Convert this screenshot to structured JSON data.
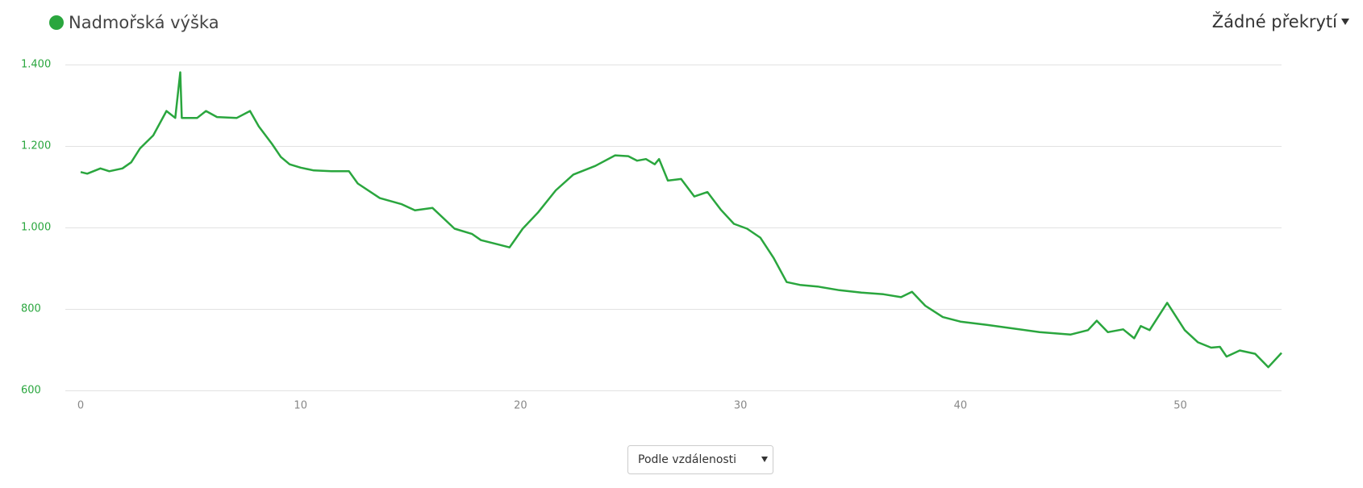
{
  "chart_data": {
    "type": "line",
    "series": [
      {
        "name": "Nadmořská výška",
        "color": "#2aa63e",
        "values": [
          1136,
          1132,
          1145,
          1138,
          1145,
          1160,
          1194,
          1226,
          1286,
          1269,
          1381,
          1269,
          1269,
          1286,
          1271,
          1269,
          1286,
          1248,
          1205,
          1173,
          1155,
          1147,
          1140,
          1138,
          1138,
          1108,
          1072,
          1057,
          1042,
          1048,
          997,
          984,
          969,
          958,
          951,
          997,
          1037,
          1091,
          1130,
          1151,
          1177,
          1175,
          1164,
          1168,
          1155,
          1168,
          1115,
          1119,
          1076,
          1087,
          1044,
          1009,
          997,
          975,
          926,
          866,
          859,
          855,
          846,
          840,
          836,
          829,
          842,
          808,
          780,
          769,
          761,
          752,
          743,
          737,
          748,
          771,
          743,
          750,
          728,
          758,
          748,
          815,
          748,
          718,
          705,
          707,
          683,
          698,
          690,
          657,
          692
        ]
      }
    ],
    "x": [
      0,
      0.3,
      0.9,
      1.3,
      1.9,
      2.3,
      2.7,
      3.3,
      3.9,
      4.3,
      4.53,
      4.6,
      5.3,
      5.7,
      6.2,
      7.1,
      7.7,
      8.1,
      8.7,
      9.1,
      9.5,
      10.0,
      10.6,
      11.4,
      12.2,
      12.6,
      13.6,
      14.6,
      15.2,
      16.0,
      17.0,
      17.8,
      18.2,
      19.0,
      19.5,
      20.1,
      20.8,
      21.6,
      22.4,
      23.4,
      24.3,
      24.9,
      25.3,
      25.7,
      26.1,
      26.3,
      26.7,
      27.3,
      27.9,
      28.5,
      29.1,
      29.7,
      30.3,
      30.9,
      31.5,
      32.1,
      32.7,
      33.5,
      34.5,
      35.5,
      36.5,
      37.3,
      37.8,
      38.4,
      39.2,
      40.0,
      41.2,
      42.4,
      43.6,
      45.0,
      45.8,
      46.2,
      46.7,
      47.4,
      47.9,
      48.2,
      48.6,
      49.4,
      50.2,
      50.8,
      51.4,
      51.8,
      52.1,
      52.7,
      53.4,
      54.0,
      54.6
    ],
    "xlim": [
      0,
      54.6
    ],
    "xticks": [
      0,
      10,
      20,
      30,
      40,
      50
    ],
    "ylim": [
      600,
      1400
    ],
    "yticks": [
      600,
      800,
      {
        "value": 1000,
        "label": "1.000"
      },
      {
        "value": 1200,
        "label": "1.200"
      },
      {
        "value": 1400,
        "label": "1.400"
      }
    ],
    "grid": true
  },
  "overlay_menu": "Žádné překrytí",
  "sort_select": "Podle vzdálenosti"
}
